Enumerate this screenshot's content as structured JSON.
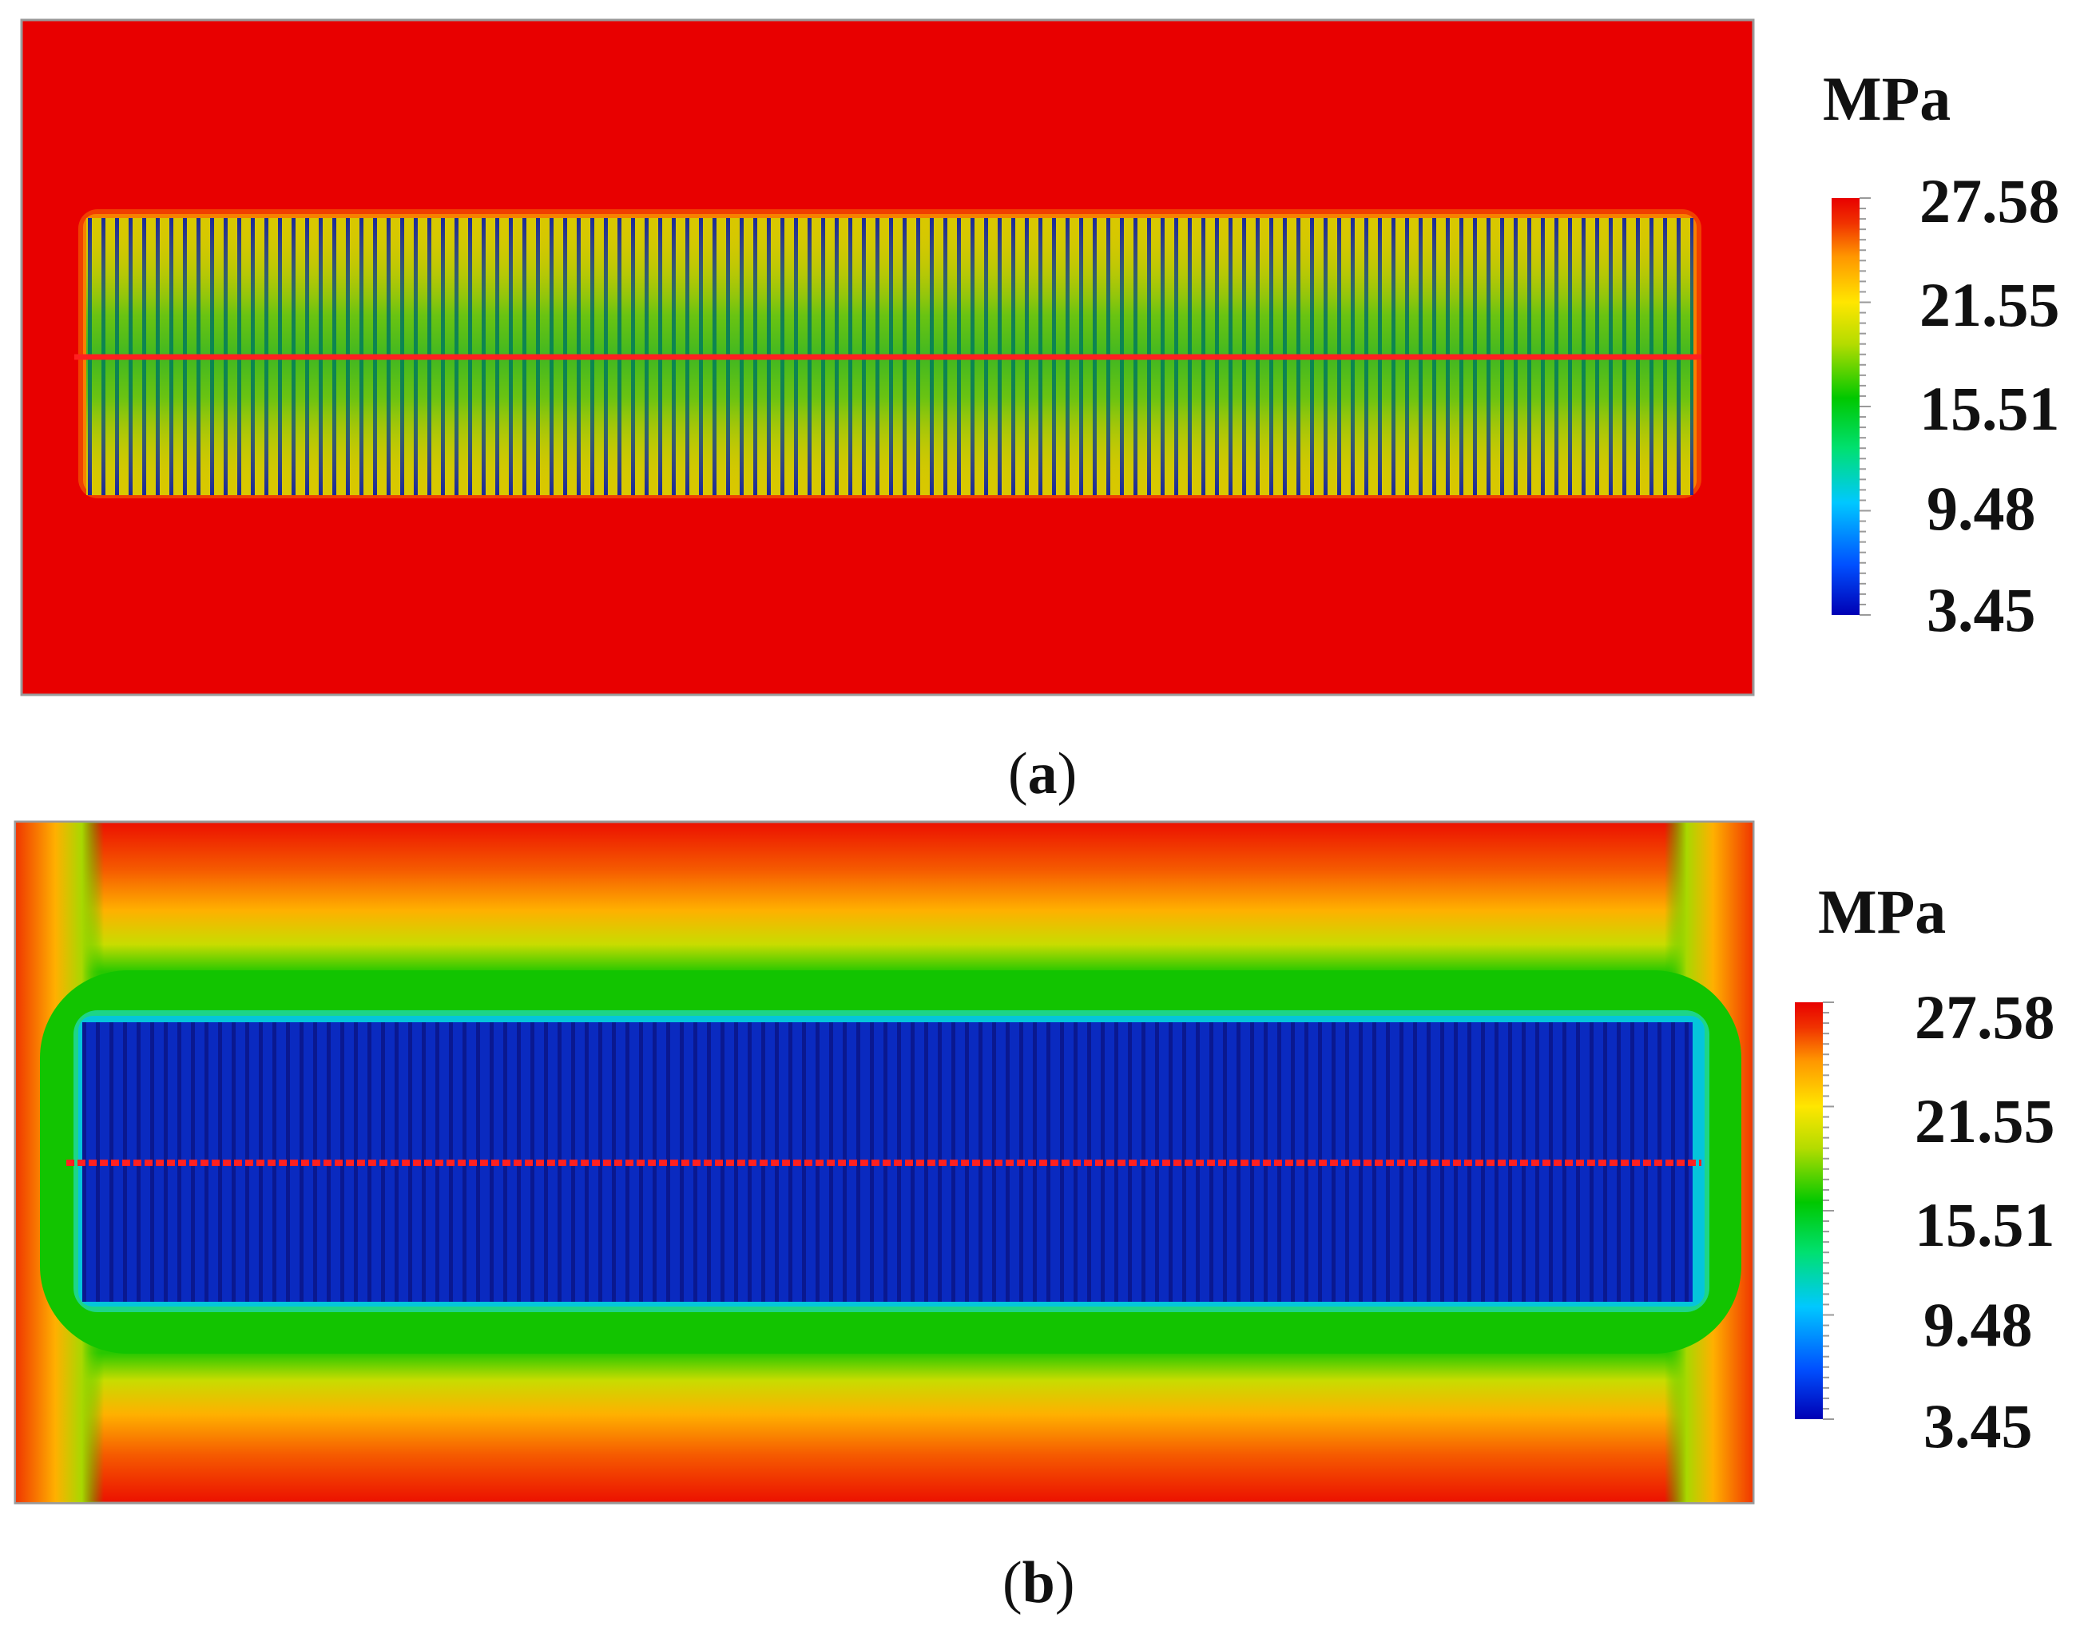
{
  "colors": {
    "background": "#ffffff",
    "field_red": "#e80000",
    "panel_border": "#9a9a9a",
    "probe_line": "#ff2020"
  },
  "colormap": [
    "#0000b4",
    "#0050ff",
    "#00c8ff",
    "#00e070",
    "#00c800",
    "#b4dc00",
    "#ffe600",
    "#ff9600",
    "#f03200",
    "#e80000"
  ],
  "panels": [
    {
      "caption_open": "(",
      "caption_letter": "a",
      "caption_close": ")",
      "legend": {
        "unit": "MPa",
        "ticks": [
          "27.58",
          "21.55",
          "15.51",
          "9.48",
          "3.45"
        ]
      }
    },
    {
      "caption_open": "(",
      "caption_letter": "b",
      "caption_close": ")",
      "legend": {
        "unit": "MPa",
        "ticks": [
          "27.58",
          "21.55",
          "15.51",
          "9.48",
          "3.45"
        ]
      }
    }
  ]
}
